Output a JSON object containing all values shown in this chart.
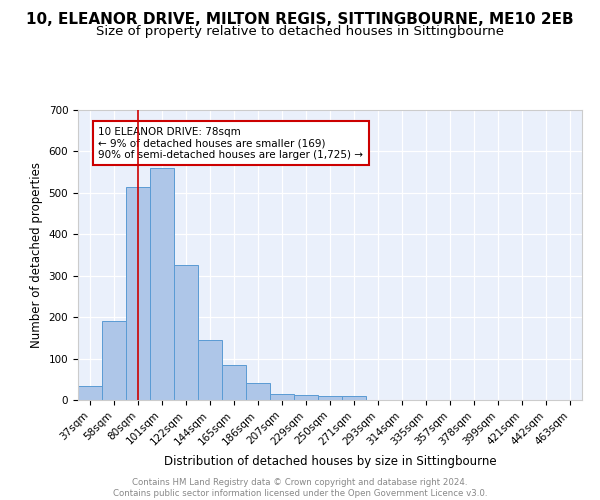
{
  "title1": "10, ELEANOR DRIVE, MILTON REGIS, SITTINGBOURNE, ME10 2EB",
  "title2": "Size of property relative to detached houses in Sittingbourne",
  "xlabel": "Distribution of detached houses by size in Sittingbourne",
  "ylabel": "Number of detached properties",
  "bar_values": [
    33,
    190,
    515,
    560,
    325,
    145,
    85,
    42,
    15,
    12,
    10,
    10,
    0,
    0,
    0,
    0,
    0,
    0,
    0,
    0,
    0
  ],
  "categories": [
    "37sqm",
    "58sqm",
    "80sqm",
    "101sqm",
    "122sqm",
    "144sqm",
    "165sqm",
    "186sqm",
    "207sqm",
    "229sqm",
    "250sqm",
    "271sqm",
    "293sqm",
    "314sqm",
    "335sqm",
    "357sqm",
    "378sqm",
    "399sqm",
    "421sqm",
    "442sqm",
    "463sqm"
  ],
  "bar_color": "#aec6e8",
  "bar_edge_color": "#5a9bd4",
  "vline_x": 2,
  "vline_color": "#cc0000",
  "annotation_text": "10 ELEANOR DRIVE: 78sqm\n← 9% of detached houses are smaller (169)\n90% of semi-detached houses are larger (1,725) →",
  "annotation_box_color": "#cc0000",
  "background_color": "#eaf0fb",
  "ylim": [
    0,
    700
  ],
  "yticks": [
    0,
    100,
    200,
    300,
    400,
    500,
    600,
    700
  ],
  "footer_text": "Contains HM Land Registry data © Crown copyright and database right 2024.\nContains public sector information licensed under the Open Government Licence v3.0.",
  "title1_fontsize": 11,
  "title2_fontsize": 9.5,
  "axis_label_fontsize": 8.5,
  "tick_fontsize": 7.5
}
